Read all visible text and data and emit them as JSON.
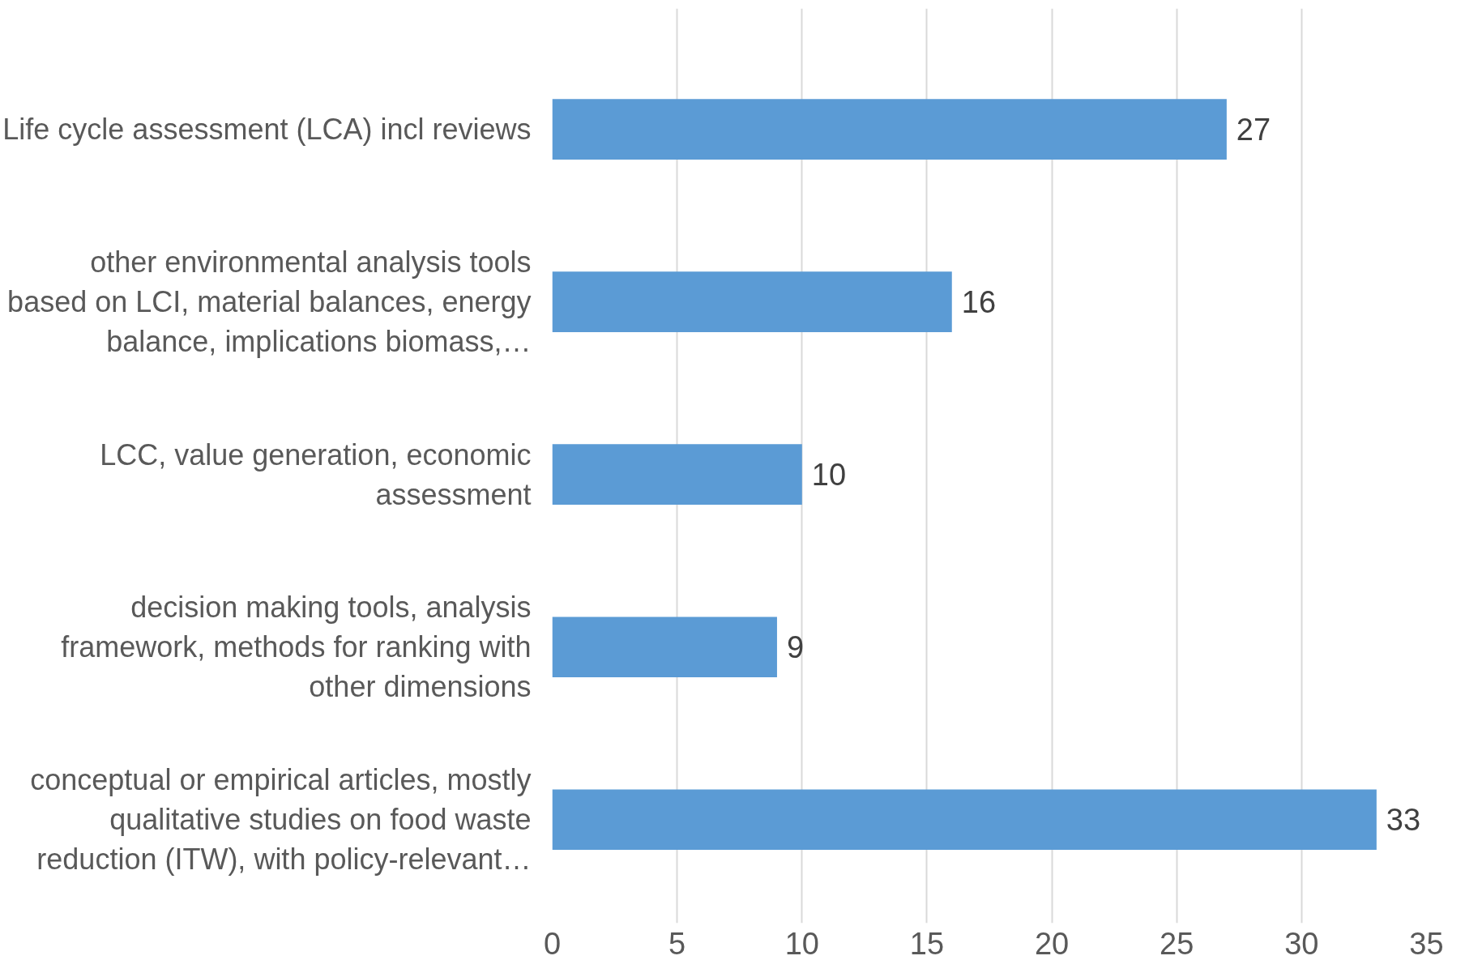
{
  "chart_data": {
    "type": "bar",
    "orientation": "horizontal",
    "categories": [
      "Life cycle assessment (LCA) incl reviews",
      "other environmental analysis tools\nbased on LCI, material balances, energy\nbalance, implications biomass,…",
      "LCC, value generation, economic\nassessment",
      "decision making tools, analysis\nframework, methods for ranking with\nother dimensions",
      "conceptual or empirical articles, mostly\nqualitative studies on food waste\nreduction (ITW), with policy-relevant…"
    ],
    "values": [
      27,
      16,
      10,
      9,
      33
    ],
    "color": "#5b9bd5",
    "xlim": [
      0,
      35
    ],
    "xticks": [
      0,
      5,
      10,
      15,
      20,
      25,
      30,
      35
    ],
    "grid": "x",
    "data_labels": true
  }
}
